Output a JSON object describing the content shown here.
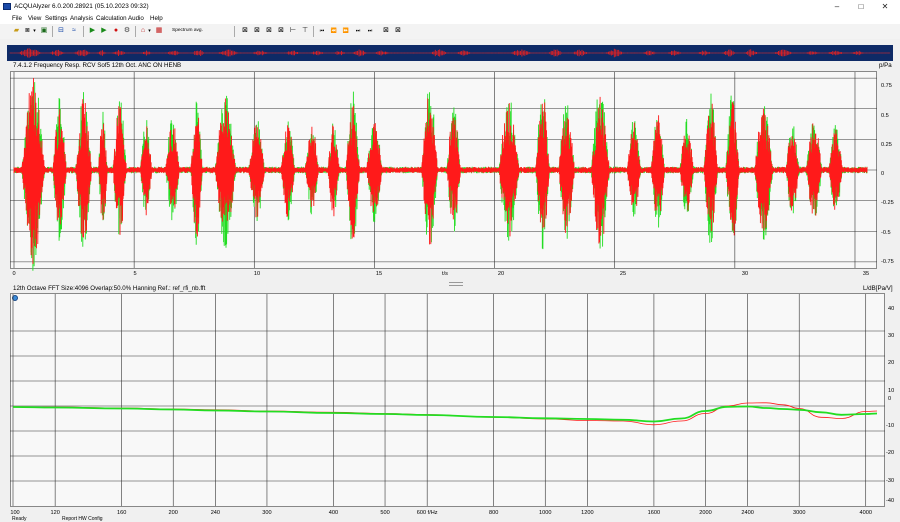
{
  "window": {
    "title": "ACQUAlyzer 6.0.200.28921 (05.10.2023 09:32)",
    "controls": [
      "–",
      "□",
      "✕"
    ]
  },
  "menu": [
    "File",
    "View",
    "Settings",
    "Analysis",
    "Calculation",
    "Audio",
    "Help"
  ],
  "toolbar": {
    "average_label": "Spectrum avg.",
    "icons": [
      "open-icon",
      "save-icon",
      "dropdown-icon",
      "record-icon",
      "view-icon",
      "play-icon",
      "play-file-icon",
      "record-red-icon",
      "settings-icon",
      "reference-icon",
      "dropdown-icon",
      "spectrum-icon",
      "zoom-x-icon",
      "zoom-y-icon",
      "zoom-xy-icon",
      "zoom-full-icon",
      "cursor-icon",
      "marker-icon",
      "step-back-icon",
      "step-icon",
      "step-forward-icon",
      "step-end-icon",
      "skip-icon",
      "cursor-left-icon",
      "cursor-right-icon"
    ]
  },
  "time_plot": {
    "label": "7.4.1.2 Frequency Resp. RCV Sof5 12th Oct. ANC ON HENB",
    "y_unit": "p/Pa",
    "y_ticks": [
      "0.75",
      "0.5",
      "0.25",
      "0",
      "-0.25",
      "-0.5",
      "-0.75"
    ],
    "x_ticks": [
      "0",
      "5",
      "10",
      "15",
      "20",
      "25",
      "30",
      "35"
    ],
    "x_unit": "t/s"
  },
  "freq_plot": {
    "label": "12th Octave  FFT Size:4096  Overlap:50.0%  Hanning  Ref.: ref_rfi_nb.fft",
    "y_unit": "L/dB[Pa/V]",
    "y_ticks": [
      "40",
      "30",
      "20",
      "10",
      "0",
      "-10",
      "-20",
      "-30",
      "-40"
    ],
    "x_ticks": [
      "100",
      "120",
      "160",
      "200",
      "240",
      "300",
      "400",
      "500",
      "600 f/Hz",
      "800",
      "1000",
      "1200",
      "1600",
      "2000",
      "2400",
      "3000",
      "4000"
    ]
  },
  "status": {
    "left": "Ready",
    "center": "Report   HW Config"
  },
  "chart_data": [
    {
      "type": "line",
      "title": "7.4.1.2 Frequency Resp. RCV Sof5 12th Oct. ANC ON HENB",
      "xlabel": "t/s",
      "ylabel": "p/Pa",
      "xlim": [
        0,
        35.5
      ],
      "ylim": [
        -0.8,
        0.8
      ],
      "grid": true,
      "series": [
        {
          "color": "#ff1a1a",
          "envelope_bursts": [
            {
              "t": 0.8,
              "w": 1.0,
              "a": 0.78
            },
            {
              "t": 1.9,
              "w": 0.6,
              "a": 0.55
            },
            {
              "t": 2.9,
              "w": 0.7,
              "a": 0.6
            },
            {
              "t": 3.7,
              "w": 0.4,
              "a": 0.45
            },
            {
              "t": 4.4,
              "w": 0.6,
              "a": 0.55
            },
            {
              "t": 5.5,
              "w": 0.5,
              "a": 0.4
            },
            {
              "t": 6.6,
              "w": 0.6,
              "a": 0.42
            },
            {
              "t": 7.6,
              "w": 0.5,
              "a": 0.58
            },
            {
              "t": 8.8,
              "w": 0.9,
              "a": 0.6
            },
            {
              "t": 10.1,
              "w": 0.7,
              "a": 0.4
            },
            {
              "t": 11.4,
              "w": 0.6,
              "a": 0.4
            },
            {
              "t": 12.4,
              "w": 0.6,
              "a": 0.36
            },
            {
              "t": 13.3,
              "w": 0.5,
              "a": 0.38
            },
            {
              "t": 14.1,
              "w": 0.6,
              "a": 0.6
            },
            {
              "t": 15.0,
              "w": 0.7,
              "a": 0.4
            },
            {
              "t": 17.3,
              "w": 0.7,
              "a": 0.66
            },
            {
              "t": 18.3,
              "w": 0.6,
              "a": 0.5
            },
            {
              "t": 20.6,
              "w": 0.9,
              "a": 0.56
            },
            {
              "t": 22.0,
              "w": 0.6,
              "a": 0.64
            },
            {
              "t": 23.0,
              "w": 0.7,
              "a": 0.54
            },
            {
              "t": 24.4,
              "w": 0.8,
              "a": 0.66
            },
            {
              "t": 25.8,
              "w": 0.6,
              "a": 0.4
            },
            {
              "t": 26.8,
              "w": 0.6,
              "a": 0.46
            },
            {
              "t": 28.0,
              "w": 0.6,
              "a": 0.4
            },
            {
              "t": 29.0,
              "w": 0.6,
              "a": 0.58
            },
            {
              "t": 29.9,
              "w": 0.6,
              "a": 0.6
            },
            {
              "t": 31.2,
              "w": 0.8,
              "a": 0.54
            },
            {
              "t": 32.4,
              "w": 0.6,
              "a": 0.35
            },
            {
              "t": 33.3,
              "w": 0.7,
              "a": 0.4
            },
            {
              "t": 34.2,
              "w": 0.6,
              "a": 0.35
            }
          ]
        },
        {
          "color": "#22dd22",
          "note_same_bursts_scale": 1.08
        }
      ]
    },
    {
      "type": "line",
      "title": "12th Octave  FFT Size:4096  Overlap:50.0%  Hanning  Ref.: ref_rfi_nb.fft",
      "xlabel": "f/Hz",
      "ylabel": "L/dB[Pa/V]",
      "xscale": "log",
      "xlim": [
        100,
        4200
      ],
      "ylim": [
        -40,
        40
      ],
      "grid": true,
      "series": [
        {
          "color": "#ff1a1a",
          "x": [
            100,
            120,
            160,
            200,
            240,
            300,
            400,
            500,
            600,
            800,
            1000,
            1200,
            1400,
            1600,
            1800,
            2000,
            2200,
            2400,
            2600,
            2800,
            3000,
            3300,
            3600,
            4000,
            4200
          ],
          "y": [
            -0.3,
            -0.4,
            -0.8,
            -1.2,
            -1.5,
            -2.0,
            -2.5,
            -3.0,
            -3.4,
            -4.5,
            -5.2,
            -5.8,
            -6.0,
            -7.5,
            -6.0,
            -3.0,
            0.0,
            1.2,
            1.3,
            0.5,
            -1.0,
            -4.5,
            -5.0,
            -2.2,
            -2.0
          ]
        },
        {
          "color": "#22dd22",
          "x": [
            100,
            120,
            160,
            200,
            240,
            300,
            400,
            500,
            600,
            800,
            1000,
            1200,
            1400,
            1600,
            1800,
            2000,
            2200,
            2400,
            2600,
            2800,
            3000,
            3300,
            3600,
            4000,
            4200
          ],
          "y": [
            -0.4,
            -0.6,
            -1.0,
            -1.4,
            -1.8,
            -2.2,
            -2.8,
            -3.2,
            -3.6,
            -4.4,
            -4.9,
            -5.2,
            -5.5,
            -6.2,
            -5.0,
            -2.0,
            -0.3,
            -0.2,
            -0.8,
            -1.2,
            -1.5,
            -2.5,
            -3.5,
            -3.2,
            -3.0
          ]
        }
      ]
    }
  ]
}
